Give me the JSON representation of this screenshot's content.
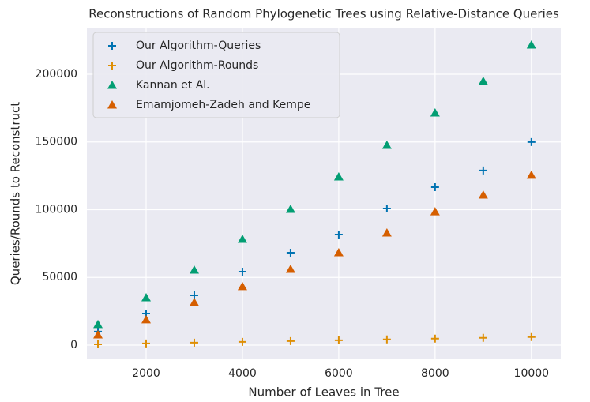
{
  "chart_data": {
    "type": "scatter",
    "title": "Reconstructions of Random Phylogenetic Trees using Relative-Distance Queries",
    "x_label": "Number of Leaves in Tree",
    "y_label": "Queries/Rounds to Reconstruct",
    "x": [
      1000,
      2000,
      3000,
      4000,
      5000,
      6000,
      7000,
      8000,
      9000,
      10000
    ],
    "series": [
      {
        "name": "Our Algorithm-Queries",
        "color": "#0173b2",
        "marker": "plus",
        "values": [
          10000,
          23300,
          36700,
          54200,
          68200,
          81600,
          100900,
          116600,
          128900,
          149900
        ]
      },
      {
        "name": "Our Algorithm-Rounds",
        "color": "#de8f05",
        "marker": "plus",
        "values": [
          600,
          1200,
          1800,
          2400,
          3000,
          3600,
          4200,
          4800,
          5400,
          6000
        ]
      },
      {
        "name": "Kannan et Al.",
        "color": "#029e73",
        "marker": "triangle",
        "values": [
          15200,
          35000,
          55400,
          78100,
          100300,
          124200,
          147500,
          171400,
          194800,
          221600
        ]
      },
      {
        "name": "Emamjomeh-Zadeh and Kempe",
        "color": "#d55e00",
        "marker": "triangle",
        "values": [
          7600,
          18700,
          31500,
          43200,
          56000,
          68200,
          82800,
          98500,
          110800,
          125400
        ]
      }
    ],
    "xlim": [
      770,
      10610
    ],
    "xticks": [
      2000,
      4000,
      6000,
      8000,
      10000
    ],
    "ylim": [
      -10500,
      234400
    ],
    "yticks": [
      0,
      50000,
      100000,
      150000,
      200000
    ],
    "grid": true,
    "legend": "upper-left"
  }
}
